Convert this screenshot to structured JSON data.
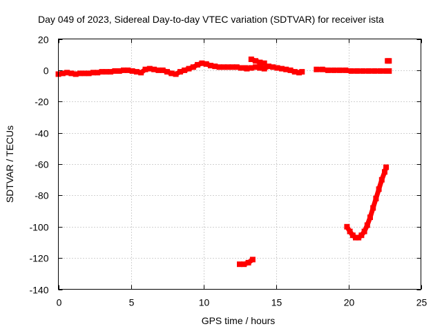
{
  "chart_data": {
    "type": "scatter",
    "title": "Day 049 of 2023, Sidereal Day-to-day VTEC variation (SDTVAR) for receiver ista",
    "xlabel": "GPS time / hours",
    "ylabel": "SDTVAR / TECUs",
    "xlim": [
      0,
      25
    ],
    "ylim": [
      -140,
      20
    ],
    "xticks": [
      0,
      5,
      10,
      15,
      20,
      25
    ],
    "yticks": [
      20,
      0,
      -20,
      -40,
      -60,
      -80,
      -100,
      -120,
      -140
    ],
    "xtick_labels": [
      "0",
      "5",
      "10",
      "15",
      "20",
      "25"
    ],
    "ytick_labels": [
      "20",
      "0",
      "-20",
      "-40",
      "-60",
      "-80",
      "-100",
      "-120",
      "-140"
    ],
    "grid": true,
    "legend": "none",
    "marker_color": "#ff0000",
    "series": [
      {
        "name": "main-band",
        "points": [
          [
            0.0,
            -2.5
          ],
          [
            0.3,
            -2
          ],
          [
            0.6,
            -1.5
          ],
          [
            0.9,
            -2
          ],
          [
            1.2,
            -2.5
          ],
          [
            1.5,
            -2
          ],
          [
            1.8,
            -2
          ],
          [
            2.1,
            -2
          ],
          [
            2.4,
            -1.5
          ],
          [
            2.7,
            -1.5
          ],
          [
            3.0,
            -1
          ],
          [
            3.3,
            -1
          ],
          [
            3.6,
            -1
          ],
          [
            3.9,
            -0.5
          ],
          [
            4.2,
            -0.5
          ],
          [
            4.5,
            0
          ],
          [
            4.8,
            0
          ],
          [
            5.1,
            -0.5
          ],
          [
            5.4,
            -1
          ],
          [
            5.7,
            -1.5
          ],
          [
            6.0,
            0.5
          ],
          [
            6.3,
            1
          ],
          [
            6.6,
            0.5
          ],
          [
            6.9,
            0
          ],
          [
            7.2,
            0
          ],
          [
            7.5,
            -1
          ],
          [
            7.8,
            -2
          ],
          [
            8.1,
            -2.5
          ],
          [
            8.4,
            -1
          ],
          [
            8.7,
            0
          ],
          [
            9.0,
            1
          ],
          [
            9.3,
            2
          ],
          [
            9.6,
            3.5
          ],
          [
            9.9,
            4.5
          ],
          [
            10.2,
            4
          ],
          [
            10.5,
            3
          ],
          [
            10.8,
            2.5
          ],
          [
            11.1,
            2
          ],
          [
            11.4,
            2
          ],
          [
            11.7,
            2
          ],
          [
            12.0,
            2
          ],
          [
            12.3,
            2
          ],
          [
            12.6,
            1.5
          ],
          [
            12.9,
            1.5
          ]
        ]
      },
      {
        "name": "mid-segment",
        "points": [
          [
            13.0,
            1
          ],
          [
            13.3,
            1.5
          ],
          [
            13.6,
            2
          ],
          [
            13.9,
            1.5
          ],
          [
            14.2,
            1
          ],
          [
            14.5,
            2.5
          ],
          [
            14.8,
            2
          ],
          [
            15.1,
            1.5
          ],
          [
            15.4,
            1
          ],
          [
            15.7,
            0.5
          ],
          [
            16.0,
            0
          ],
          [
            16.3,
            -1
          ],
          [
            16.6,
            -1.5
          ],
          [
            16.8,
            -1
          ]
        ]
      },
      {
        "name": "spike-near-13",
        "points": [
          [
            13.3,
            7
          ],
          [
            13.6,
            6
          ],
          [
            13.9,
            5
          ],
          [
            14.2,
            4.5
          ]
        ]
      },
      {
        "name": "late-flat",
        "points": [
          [
            17.8,
            0.5
          ],
          [
            18.2,
            0.5
          ],
          [
            18.6,
            0
          ],
          [
            19.0,
            0
          ],
          [
            19.4,
            0
          ],
          [
            19.8,
            0
          ],
          [
            20.2,
            -0.5
          ],
          [
            20.6,
            -0.5
          ],
          [
            21.0,
            -0.5
          ],
          [
            21.4,
            -0.5
          ],
          [
            21.8,
            -0.5
          ],
          [
            22.2,
            -0.5
          ],
          [
            22.6,
            -0.5
          ],
          [
            22.8,
            -0.5
          ]
        ]
      },
      {
        "name": "isolated-high",
        "points": [
          [
            22.7,
            6
          ],
          [
            22.8,
            6
          ]
        ]
      },
      {
        "name": "low-segment",
        "points": [
          [
            12.5,
            -124
          ],
          [
            12.8,
            -124
          ],
          [
            13.1,
            -123
          ],
          [
            13.4,
            -121
          ]
        ]
      },
      {
        "name": "dip-curve",
        "points": [
          [
            19.9,
            -100
          ],
          [
            20.1,
            -103
          ],
          [
            20.3,
            -105.5
          ],
          [
            20.5,
            -107
          ],
          [
            20.7,
            -107
          ],
          [
            20.9,
            -105.5
          ],
          [
            21.1,
            -103
          ],
          [
            21.3,
            -99
          ],
          [
            21.5,
            -94
          ],
          [
            21.7,
            -88
          ],
          [
            21.9,
            -82
          ],
          [
            22.1,
            -76
          ],
          [
            22.3,
            -70
          ],
          [
            22.5,
            -65
          ],
          [
            22.6,
            -62
          ]
        ]
      }
    ]
  }
}
